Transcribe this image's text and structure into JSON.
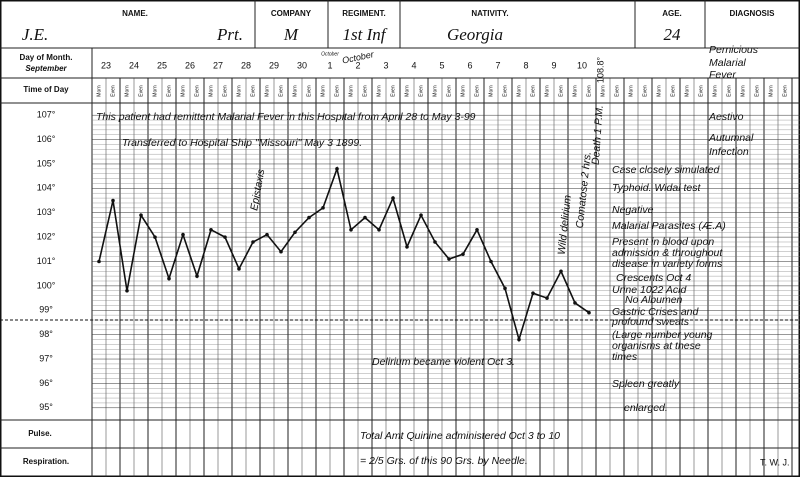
{
  "header": {
    "initials": "J.E.",
    "name_label": "NAME.",
    "rank": "Prt.",
    "company_label": "COMPANY",
    "company": "M",
    "regiment_label": "REGIMENT.",
    "regiment": "1st Inf",
    "nativity_label": "NATIVITY.",
    "nativity": "Georgia",
    "age_label": "AGE.",
    "age": "24",
    "diagnosis_label": "DIAGNOSIS"
  },
  "labels": {
    "day_of_month": "Day of Month.",
    "month": "September",
    "time_of_day": "Time of Day",
    "pulse": "Pulse.",
    "respiration": "Respiration.",
    "month_changes": [
      "October",
      "October"
    ],
    "time_slots": [
      "Morn",
      "Even"
    ]
  },
  "annotations": {
    "peak": "108.8°",
    "history": "This patient had remittent Malarial Fever in this Hospital from April 28 to May 3-99",
    "transfer": "Transferred to Hospital Ship \"Missouri\" May 3 1899.",
    "epistaxis": "Epistaxis",
    "delirium_wild": "Wild delirium",
    "comatose": "Comatose 2 hrs.",
    "death": "Death 1 P.M.",
    "delirium_violent": "Delirium became violent Oct 3.",
    "quinine_total": "Total Amt Quinine administered Oct 3 to 10",
    "quinine_needle": "= 2/5 Grs. of this 90 Grs. by Needle.",
    "signature": "T. W. J."
  },
  "diagnosis": [
    "Pernicious",
    "Malarial",
    "Fever",
    "Aestivo",
    "Autumnal",
    "Infection"
  ],
  "notes": [
    "Case closely simulated",
    "Typhoid. Widal test",
    "Negative",
    "Malarial Parasites (Æ.A)",
    "Present in blood upon",
    "admission & throughout",
    "disease in variety forms",
    "Crescents Oct 4",
    "Urine 1022 Acid",
    "No Albumen",
    "Gastric Crises and",
    "profound sweats",
    "(Large number young",
    "organisms at these",
    "times",
    "Spleen greatly",
    "enlarged."
  ],
  "chart_data": {
    "type": "line",
    "categories": [
      "23",
      null,
      "24",
      null,
      "25",
      null,
      "26",
      null,
      "27",
      null,
      "28",
      null,
      "29",
      null,
      "30",
      null,
      "1",
      null,
      "2",
      null,
      "3",
      null,
      "4",
      null,
      "5",
      null,
      "6",
      null,
      "7",
      null,
      "8",
      null,
      "9",
      null,
      "10",
      null
    ],
    "values": [
      101.0,
      103.5,
      99.8,
      102.9,
      102.0,
      100.3,
      102.1,
      100.4,
      102.3,
      102.0,
      100.7,
      101.8,
      102.1,
      101.4,
      102.2,
      102.8,
      103.2,
      104.8,
      102.3,
      102.8,
      102.3,
      103.6,
      101.6,
      102.9,
      101.8,
      101.1,
      101.3,
      102.3,
      101.0,
      99.9,
      97.8,
      99.7,
      99.5,
      100.6,
      99.3,
      98.9
    ],
    "color": "#111111",
    "ylim": [
      94.5,
      107.5
    ],
    "yticks": [
      {
        "value": 95,
        "label": "95°"
      },
      {
        "value": 96,
        "label": "96°"
      },
      {
        "value": 97,
        "label": "97°"
      },
      {
        "value": 98,
        "label": "98°"
      },
      {
        "value": 99,
        "label": "99°"
      },
      {
        "value": 100,
        "label": "100°"
      },
      {
        "value": 101,
        "label": "101°"
      },
      {
        "value": 102,
        "label": "102°"
      },
      {
        "value": 103,
        "label": "103°"
      },
      {
        "value": 104,
        "label": "104°"
      },
      {
        "value": 105,
        "label": "105°"
      },
      {
        "value": 106,
        "label": "106°"
      },
      {
        "value": 107,
        "label": "107°"
      }
    ],
    "reference_line": 98.6,
    "grid": true
  }
}
